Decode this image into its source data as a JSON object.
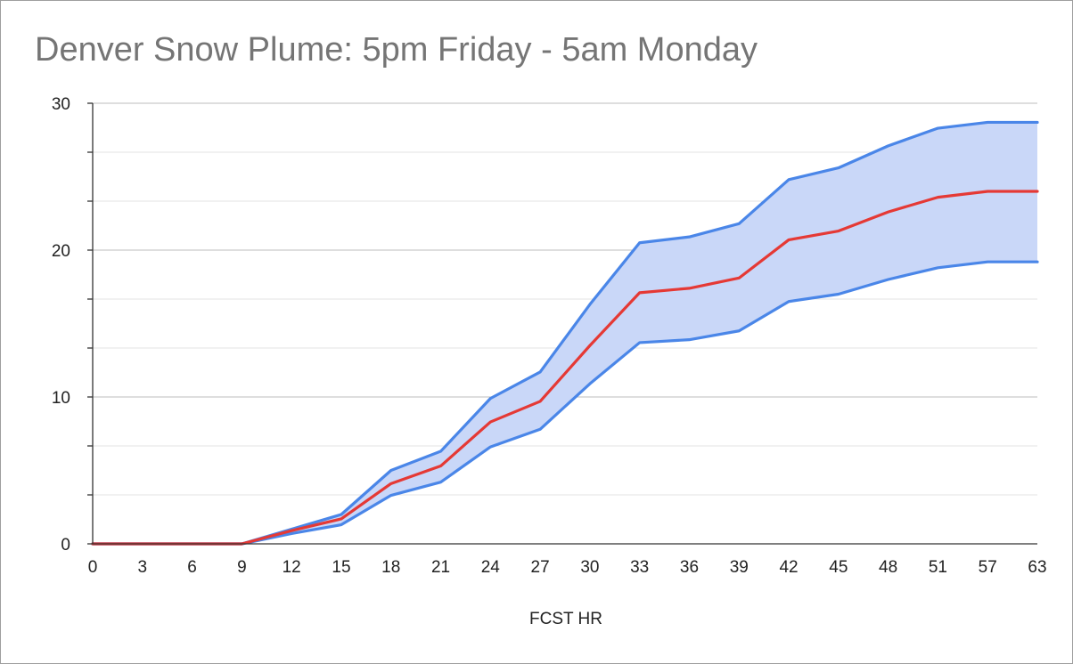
{
  "chart_data": {
    "type": "area",
    "title": "Denver Snow Plume: 5pm Friday - 5am Monday",
    "xlabel": "FCST HR",
    "ylabel": "",
    "categories": [
      "0",
      "3",
      "6",
      "9",
      "12",
      "15",
      "18",
      "21",
      "24",
      "27",
      "30",
      "33",
      "36",
      "39",
      "42",
      "45",
      "48",
      "51",
      "57",
      "63"
    ],
    "ylim": [
      0,
      30
    ],
    "yticks": [
      0,
      10,
      20,
      30
    ],
    "grid": true,
    "series": [
      {
        "role": "upper",
        "color": "#4a86e8",
        "values": [
          0,
          0,
          0,
          0,
          1.0,
          2.0,
          5.0,
          6.3,
          9.9,
          11.7,
          16.3,
          20.5,
          20.9,
          21.8,
          24.8,
          25.6,
          27.1,
          28.3,
          28.7,
          28.7
        ]
      },
      {
        "role": "mean",
        "color": "#e53935",
        "values": [
          0,
          0,
          0,
          0,
          0.9,
          1.7,
          4.1,
          5.3,
          8.3,
          9.7,
          13.5,
          17.1,
          17.4,
          18.1,
          20.7,
          21.3,
          22.6,
          23.6,
          24.0,
          24.0
        ]
      },
      {
        "role": "lower",
        "color": "#4a86e8",
        "values": [
          0,
          0,
          0,
          0,
          0.7,
          1.3,
          3.3,
          4.2,
          6.6,
          7.8,
          10.9,
          13.7,
          13.9,
          14.5,
          16.5,
          17.0,
          18.0,
          18.8,
          19.2,
          19.2
        ]
      }
    ],
    "band_fill": "#c9d7f8"
  }
}
